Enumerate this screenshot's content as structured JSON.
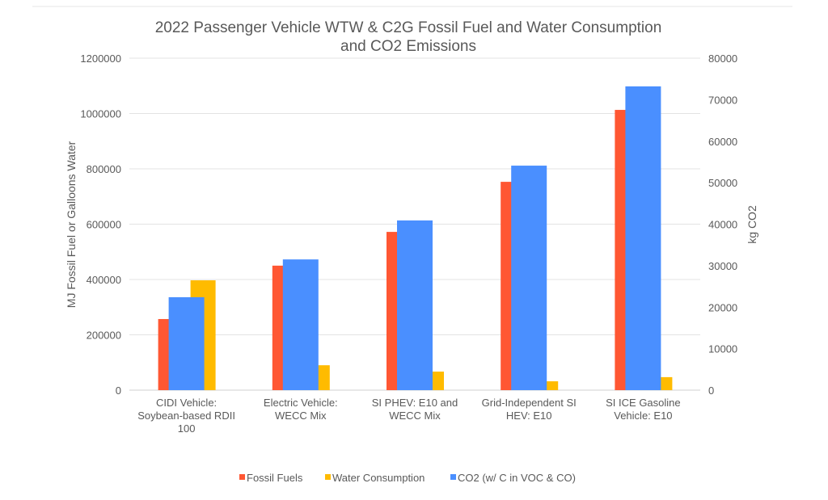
{
  "chart_data": {
    "type": "bar",
    "title": "2022 Passenger Vehicle WTW & C2G Fossil Fuel and Water Consumption and CO2 Emissions",
    "title_lines": [
      "2022 Passenger Vehicle WTW & C2G Fossil Fuel and Water Consumption",
      "and CO2 Emissions"
    ],
    "ylabel": "MJ Fossil Fuel or Galloons Water",
    "y2label": "kg CO2",
    "ylim": [
      0,
      1200000
    ],
    "y2lim": [
      0,
      80000
    ],
    "yticks": [
      "0",
      "200000",
      "400000",
      "600000",
      "800000",
      "1000000",
      "1200000"
    ],
    "y2ticks": [
      "0",
      "10000",
      "20000",
      "30000",
      "40000",
      "50000",
      "60000",
      "70000",
      "80000"
    ],
    "grid": true,
    "legend": "bottom",
    "categories": [
      [
        "CIDI Vehicle:",
        "Soybean-based RDII",
        "100"
      ],
      [
        "Electric Vehicle:",
        "WECC Mix"
      ],
      [
        "SI PHEV: E10 and",
        "WECC Mix"
      ],
      [
        "Grid-Independent SI",
        "HEV: E10"
      ],
      [
        "SI ICE Gasoline",
        "Vehicle: E10"
      ]
    ],
    "series": [
      {
        "name": "Fossil Fuels",
        "axis": "left",
        "color": "#ff5733",
        "values": [
          257000,
          450000,
          572000,
          753000,
          1013000
        ]
      },
      {
        "name": "Water Consumption",
        "axis": "left",
        "color": "#ffbb00",
        "values": [
          397000,
          90000,
          67000,
          32000,
          47000
        ]
      },
      {
        "name": "CO2 (w/ C in VOC & CO)",
        "axis": "right",
        "color": "#4a8fff",
        "values": [
          22400,
          31500,
          40900,
          54100,
          73200
        ]
      }
    ]
  }
}
